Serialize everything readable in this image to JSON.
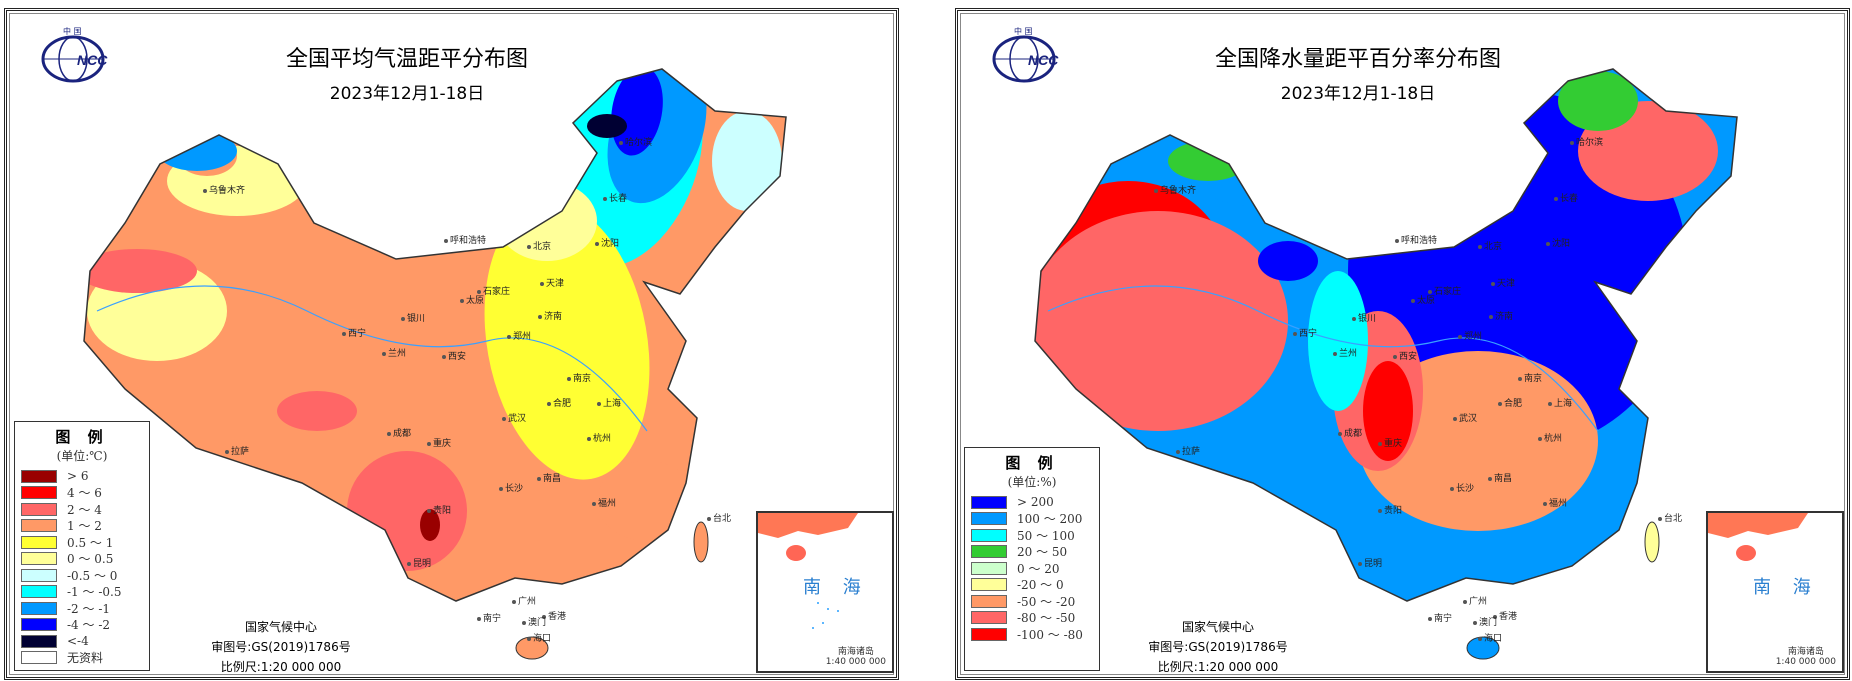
{
  "left": {
    "title": "全国平均气温距平分布图",
    "date": "2023年12月1-18日",
    "legend": {
      "heading": "图 例",
      "unit": "(单位:℃)",
      "items": [
        {
          "label": "> 6",
          "color": "#990000"
        },
        {
          "label": "4 ～ 6",
          "color": "#ff0000"
        },
        {
          "label": "2 ～ 4",
          "color": "#ff6666"
        },
        {
          "label": "1 ～ 2",
          "color": "#ff9966"
        },
        {
          "label": "0.5 ～ 1",
          "color": "#ffff33"
        },
        {
          "label": "0 ～ 0.5",
          "color": "#ffff99"
        },
        {
          "label": "-0.5 ～ 0",
          "color": "#ccffff"
        },
        {
          "label": "-1 ～ -0.5",
          "color": "#00ffff"
        },
        {
          "label": "-2 ～ -1",
          "color": "#0099ff"
        },
        {
          "label": "-4 ～ -2",
          "color": "#0000ff"
        },
        {
          "label": "<-4",
          "color": "#000033"
        },
        {
          "label": "无资料",
          "color": "#ffffff"
        }
      ]
    },
    "credit": {
      "org": "国家气候中心",
      "approval": "审图号:GS(2019)1786号",
      "scale": "比例尺:1:20 000 000"
    },
    "inset": {
      "sea": "南 海",
      "islands": "南海诸岛",
      "scale": "1:40 000 000"
    }
  },
  "right": {
    "title": "全国降水量距平百分率分布图",
    "date": "2023年12月1-18日",
    "legend": {
      "heading": "图 例",
      "unit": "(单位:%)",
      "items": [
        {
          "label": "> 200",
          "color": "#0000ff"
        },
        {
          "label": "100 ～ 200",
          "color": "#0099ff"
        },
        {
          "label": "50 ～ 100",
          "color": "#00ffff"
        },
        {
          "label": "20 ～ 50",
          "color": "#33cc33"
        },
        {
          "label": "0 ～ 20",
          "color": "#ccffcc"
        },
        {
          "label": "-20 ～ 0",
          "color": "#ffff99"
        },
        {
          "label": "-50 ～ -20",
          "color": "#ff9966"
        },
        {
          "label": "-80 ～ -50",
          "color": "#ff6666"
        },
        {
          "label": "-100 ～ -80",
          "color": "#ff0000"
        }
      ]
    },
    "credit": {
      "org": "国家气候中心",
      "approval": "审图号:GS(2019)1786号",
      "scale": "比例尺:1:20 000 000"
    },
    "inset": {
      "sea": "南 海",
      "islands": "南海诸岛",
      "scale": "1:40 000 000"
    }
  },
  "logo_text": "NCC",
  "cities": [
    "乌鲁木齐",
    "哈尔滨",
    "长春",
    "沈阳",
    "呼和浩特",
    "北京",
    "天津",
    "太原",
    "石家庄",
    "济南",
    "银川",
    "兰州",
    "西宁",
    "西安",
    "郑州",
    "拉萨",
    "成都",
    "重庆",
    "武汉",
    "合肥",
    "南京",
    "上海",
    "杭州",
    "长沙",
    "南昌",
    "福州",
    "贵阳",
    "昆明",
    "南宁",
    "广州",
    "香港",
    "澳门",
    "海口",
    "台北"
  ]
}
